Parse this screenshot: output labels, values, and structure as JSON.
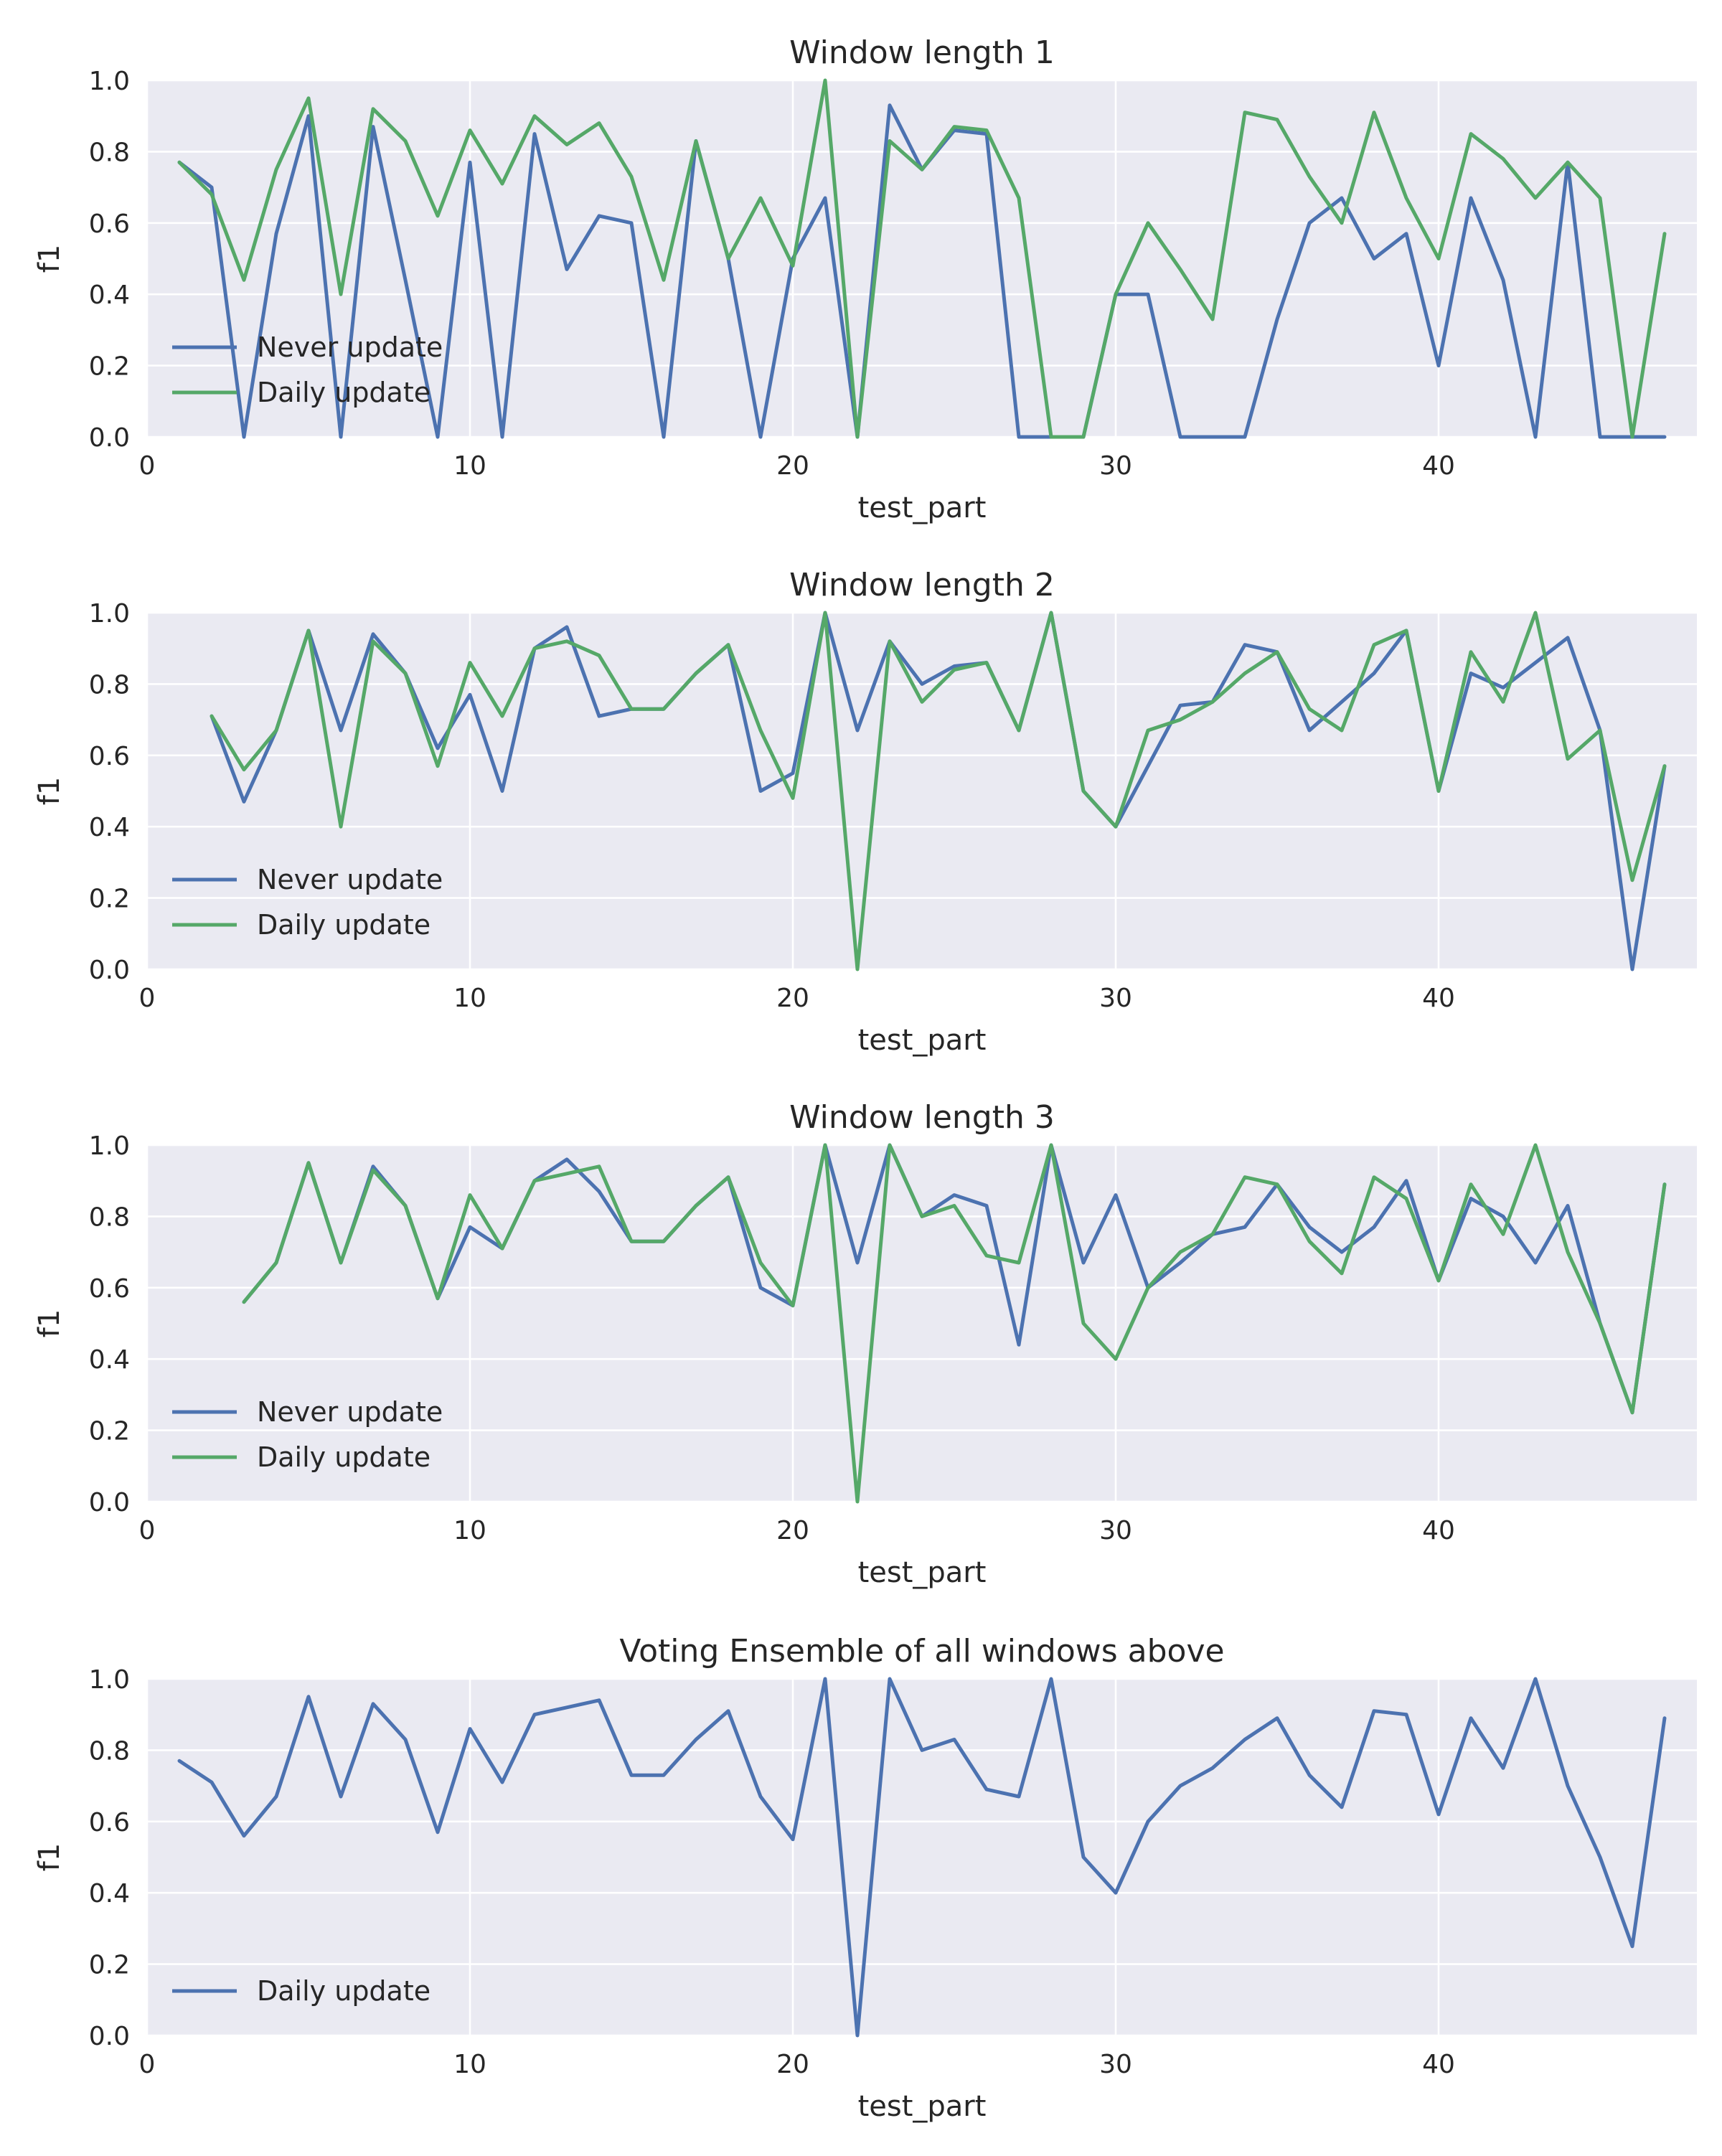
{
  "chart_data": [
    {
      "type": "line",
      "title": "Window length 1",
      "xlabel": "test_part",
      "ylabel": "f1",
      "xlim": [
        0,
        48
      ],
      "ylim": [
        0.0,
        1.0
      ],
      "xticks": [
        0,
        10,
        20,
        30,
        40
      ],
      "yticks": [
        0.0,
        0.2,
        0.4,
        0.6,
        0.8,
        1.0
      ],
      "grid": true,
      "legend": "lower-left",
      "series": [
        {
          "name": "Never update",
          "color": "#4C72B0",
          "x": [
            1,
            2,
            3,
            4,
            5,
            6,
            7,
            8,
            9,
            10,
            11,
            12,
            13,
            14,
            15,
            16,
            17,
            18,
            19,
            20,
            21,
            22,
            23,
            24,
            25,
            26,
            27,
            28,
            29,
            30,
            31,
            32,
            33,
            34,
            35,
            36,
            37,
            38,
            39,
            40,
            41,
            42,
            43,
            44,
            45,
            46,
            47
          ],
          "values": [
            0.77,
            0.7,
            0.0,
            0.57,
            0.9,
            0.0,
            0.87,
            0.44,
            0.0,
            0.77,
            0.0,
            0.85,
            0.47,
            0.62,
            0.6,
            0.0,
            0.83,
            0.5,
            0.0,
            0.5,
            0.67,
            0.0,
            0.93,
            0.75,
            0.86,
            0.85,
            0.0,
            0.0,
            0.0,
            0.4,
            0.4,
            0.0,
            0.0,
            0.0,
            0.33,
            0.6,
            0.67,
            0.5,
            0.57,
            0.2,
            0.67,
            0.44,
            0.0,
            0.77,
            0.0,
            0.0,
            0.0
          ]
        },
        {
          "name": "Daily update",
          "color": "#55A868",
          "x": [
            1,
            2,
            3,
            4,
            5,
            6,
            7,
            8,
            9,
            10,
            11,
            12,
            13,
            14,
            15,
            16,
            17,
            18,
            19,
            20,
            21,
            22,
            23,
            24,
            25,
            26,
            27,
            28,
            29,
            30,
            31,
            32,
            33,
            34,
            35,
            36,
            37,
            38,
            39,
            40,
            41,
            42,
            43,
            44,
            45,
            46,
            47
          ],
          "values": [
            0.77,
            0.68,
            0.44,
            0.75,
            0.95,
            0.4,
            0.92,
            0.83,
            0.62,
            0.86,
            0.71,
            0.9,
            0.82,
            0.88,
            0.73,
            0.44,
            0.83,
            0.5,
            0.67,
            0.48,
            1.0,
            0.0,
            0.83,
            0.75,
            0.87,
            0.86,
            0.67,
            0.0,
            0.0,
            0.4,
            0.6,
            0.47,
            0.33,
            0.91,
            0.89,
            0.73,
            0.6,
            0.91,
            0.67,
            0.5,
            0.85,
            0.78,
            0.67,
            0.77,
            0.67,
            0.0,
            0.57
          ]
        }
      ]
    },
    {
      "type": "line",
      "title": "Window length 2",
      "xlabel": "test_part",
      "ylabel": "f1",
      "xlim": [
        0,
        48
      ],
      "ylim": [
        0.0,
        1.0
      ],
      "xticks": [
        0,
        10,
        20,
        30,
        40
      ],
      "yticks": [
        0.0,
        0.2,
        0.4,
        0.6,
        0.8,
        1.0
      ],
      "grid": true,
      "legend": "lower-left",
      "series": [
        {
          "name": "Never update",
          "color": "#4C72B0",
          "x": [
            2,
            3,
            4,
            5,
            6,
            7,
            8,
            9,
            10,
            11,
            12,
            13,
            14,
            15,
            16,
            17,
            18,
            19,
            20,
            21,
            22,
            23,
            24,
            25,
            26,
            27,
            28,
            29,
            30,
            31,
            32,
            33,
            34,
            35,
            36,
            37,
            38,
            39,
            40,
            41,
            42,
            43,
            44,
            45,
            46,
            47
          ],
          "values": [
            0.71,
            0.47,
            0.67,
            0.95,
            0.67,
            0.94,
            0.83,
            0.62,
            0.77,
            0.5,
            0.9,
            0.96,
            0.71,
            0.73,
            0.73,
            0.83,
            0.91,
            0.5,
            0.55,
            1.0,
            0.67,
            0.92,
            0.8,
            0.85,
            0.86,
            0.67,
            1.0,
            0.5,
            0.4,
            0.57,
            0.74,
            0.75,
            0.91,
            0.89,
            0.67,
            0.75,
            0.83,
            0.95,
            0.5,
            0.83,
            0.79,
            0.86,
            0.93,
            0.67,
            0.0,
            0.57
          ]
        },
        {
          "name": "Daily update",
          "color": "#55A868",
          "x": [
            2,
            3,
            4,
            5,
            6,
            7,
            8,
            9,
            10,
            11,
            12,
            13,
            14,
            15,
            16,
            17,
            18,
            19,
            20,
            21,
            22,
            23,
            24,
            25,
            26,
            27,
            28,
            29,
            30,
            31,
            32,
            33,
            34,
            35,
            36,
            37,
            38,
            39,
            40,
            41,
            42,
            43,
            44,
            45,
            46,
            47
          ],
          "values": [
            0.71,
            0.56,
            0.67,
            0.95,
            0.4,
            0.92,
            0.83,
            0.57,
            0.86,
            0.71,
            0.9,
            0.92,
            0.88,
            0.73,
            0.73,
            0.83,
            0.91,
            0.67,
            0.48,
            1.0,
            0.0,
            0.92,
            0.75,
            0.84,
            0.86,
            0.67,
            1.0,
            0.5,
            0.4,
            0.67,
            0.7,
            0.75,
            0.83,
            0.89,
            0.73,
            0.67,
            0.91,
            0.95,
            0.5,
            0.89,
            0.75,
            1.0,
            0.59,
            0.67,
            0.25,
            0.57
          ]
        }
      ]
    },
    {
      "type": "line",
      "title": "Window length 3",
      "xlabel": "test_part",
      "ylabel": "f1",
      "xlim": [
        0,
        48
      ],
      "ylim": [
        0.0,
        1.0
      ],
      "xticks": [
        0,
        10,
        20,
        30,
        40
      ],
      "yticks": [
        0.0,
        0.2,
        0.4,
        0.6,
        0.8,
        1.0
      ],
      "grid": true,
      "legend": "lower-left",
      "series": [
        {
          "name": "Never update",
          "color": "#4C72B0",
          "x": [
            3,
            4,
            5,
            6,
            7,
            8,
            9,
            10,
            11,
            12,
            13,
            14,
            15,
            16,
            17,
            18,
            19,
            20,
            21,
            22,
            23,
            24,
            25,
            26,
            27,
            28,
            29,
            30,
            31,
            32,
            33,
            34,
            35,
            36,
            37,
            38,
            39,
            40,
            41,
            42,
            43,
            44,
            45,
            46,
            47
          ],
          "values": [
            0.56,
            0.67,
            0.95,
            0.67,
            0.94,
            0.83,
            0.57,
            0.77,
            0.71,
            0.9,
            0.96,
            0.87,
            0.73,
            0.73,
            0.83,
            0.91,
            0.6,
            0.55,
            1.0,
            0.67,
            1.0,
            0.8,
            0.86,
            0.83,
            0.44,
            1.0,
            0.67,
            0.86,
            0.6,
            0.67,
            0.75,
            0.77,
            0.89,
            0.77,
            0.7,
            0.77,
            0.9,
            0.62,
            0.85,
            0.8,
            0.67,
            0.83,
            0.5,
            0.25,
            0.89
          ]
        },
        {
          "name": "Daily update",
          "color": "#55A868",
          "x": [
            3,
            4,
            5,
            6,
            7,
            8,
            9,
            10,
            11,
            12,
            13,
            14,
            15,
            16,
            17,
            18,
            19,
            20,
            21,
            22,
            23,
            24,
            25,
            26,
            27,
            28,
            29,
            30,
            31,
            32,
            33,
            34,
            35,
            36,
            37,
            38,
            39,
            40,
            41,
            42,
            43,
            44,
            45,
            46,
            47
          ],
          "values": [
            0.56,
            0.67,
            0.95,
            0.67,
            0.93,
            0.83,
            0.57,
            0.86,
            0.71,
            0.9,
            0.92,
            0.94,
            0.73,
            0.73,
            0.83,
            0.91,
            0.67,
            0.55,
            1.0,
            0.0,
            1.0,
            0.8,
            0.83,
            0.69,
            0.67,
            1.0,
            0.5,
            0.4,
            0.6,
            0.7,
            0.75,
            0.91,
            0.89,
            0.73,
            0.64,
            0.91,
            0.85,
            0.62,
            0.89,
            0.75,
            1.0,
            0.7,
            0.5,
            0.25,
            0.89
          ]
        }
      ]
    },
    {
      "type": "line",
      "title": "Voting Ensemble of all windows above",
      "xlabel": "test_part",
      "ylabel": "f1",
      "xlim": [
        0,
        48
      ],
      "ylim": [
        0.0,
        1.0
      ],
      "xticks": [
        0,
        10,
        20,
        30,
        40
      ],
      "yticks": [
        0.0,
        0.2,
        0.4,
        0.6,
        0.8,
        1.0
      ],
      "grid": true,
      "legend": "lower-left",
      "series": [
        {
          "name": "Daily update",
          "color": "#4C72B0",
          "x": [
            1,
            2,
            3,
            4,
            5,
            6,
            7,
            8,
            9,
            10,
            11,
            12,
            13,
            14,
            15,
            16,
            17,
            18,
            19,
            20,
            21,
            22,
            23,
            24,
            25,
            26,
            27,
            28,
            29,
            30,
            31,
            32,
            33,
            34,
            35,
            36,
            37,
            38,
            39,
            40,
            41,
            42,
            43,
            44,
            45,
            46,
            47
          ],
          "values": [
            0.77,
            0.71,
            0.56,
            0.67,
            0.95,
            0.67,
            0.93,
            0.83,
            0.57,
            0.86,
            0.71,
            0.9,
            0.92,
            0.94,
            0.73,
            0.73,
            0.83,
            0.91,
            0.67,
            0.55,
            1.0,
            0.0,
            1.0,
            0.8,
            0.83,
            0.69,
            0.67,
            1.0,
            0.5,
            0.4,
            0.6,
            0.7,
            0.75,
            0.83,
            0.89,
            0.73,
            0.64,
            0.91,
            0.9,
            0.62,
            0.89,
            0.75,
            1.0,
            0.7,
            0.5,
            0.25,
            0.89
          ]
        }
      ]
    }
  ]
}
